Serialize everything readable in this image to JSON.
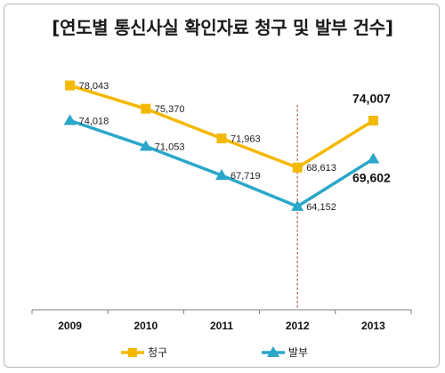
{
  "title": "[연도별 통신사실 확인자료 청구 및 발부 건수]",
  "colors": {
    "claim": "#F5B800",
    "issue": "#2AA7C9",
    "marker_line": "#C0504D",
    "axis": "#7f7f7f"
  },
  "chart_data": {
    "type": "line",
    "title": "[연도별 통신사실 확인자료 청구 및 발부 건수]",
    "xlabel": "",
    "ylabel": "",
    "categories": [
      "2009",
      "2010",
      "2011",
      "2012",
      "2013"
    ],
    "ylim": [
      58000,
      80500
    ],
    "grid": false,
    "legend_position": "bottom",
    "reference_line": "2012",
    "series": [
      {
        "name": "청구",
        "marker": "square",
        "values": [
          78043,
          75370,
          71963,
          68613,
          74007
        ],
        "labels": [
          "78,043",
          "75,370",
          "71,963",
          "68,613",
          "74,007"
        ]
      },
      {
        "name": "발부",
        "marker": "triangle",
        "values": [
          74018,
          71053,
          67719,
          64152,
          69602
        ],
        "labels": [
          "74,018",
          "71,053",
          "67,719",
          "64,152",
          "69,602"
        ]
      }
    ]
  }
}
